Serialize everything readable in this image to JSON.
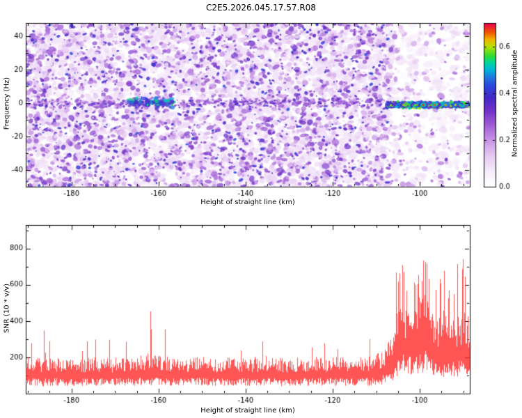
{
  "title": "C2E5.2026.045.17.57.R08",
  "chart_data": [
    {
      "type": "heatmap",
      "title": "",
      "xlabel": "Height of straight line (km)",
      "ylabel": "Frequency (Hz)",
      "xlim": [
        -190.5,
        -88.5
      ],
      "ylim": [
        -50,
        48
      ],
      "xticks": [
        -180,
        -160,
        -140,
        -120,
        -100
      ],
      "x_minor_step": 5,
      "yticks": [
        40,
        20,
        0,
        -20,
        -40
      ],
      "y_minor_step": 10,
      "colorbar": {
        "label": "Normalized spectral amplitude",
        "ticks": [
          0,
          0.2,
          0.4,
          0.6
        ],
        "range": [
          0,
          0.7
        ]
      },
      "colormap_stops": [
        [
          0.0,
          "#ffffff"
        ],
        [
          0.06,
          "#f7eefb"
        ],
        [
          0.13,
          "#e6c9f2"
        ],
        [
          0.2,
          "#c794e6"
        ],
        [
          0.27,
          "#9b57d3"
        ],
        [
          0.33,
          "#6c2fc7"
        ],
        [
          0.38,
          "#4428c8"
        ],
        [
          0.43,
          "#2e44de"
        ],
        [
          0.47,
          "#1f7ae0"
        ],
        [
          0.5,
          "#00b4d8"
        ],
        [
          0.53,
          "#00d4a0"
        ],
        [
          0.56,
          "#30dc30"
        ],
        [
          0.6,
          "#b8e000"
        ],
        [
          0.63,
          "#f0b400"
        ],
        [
          0.66,
          "#f05800"
        ],
        [
          0.7,
          "#e8004c"
        ]
      ],
      "noise": {
        "seed": 1337,
        "sparse_from_km": -106.5,
        "sparse_keep": [
          0.45,
          0.38,
          0.15
        ],
        "passes": [
          {
            "count": 3000,
            "r": [
              2.5,
              6.0
            ],
            "amp": [
              0.04,
              0.14
            ],
            "pow": 1.0,
            "alpha": 0.5
          },
          {
            "count": 3800,
            "r": [
              1.2,
              3.8
            ],
            "amp": [
              0.07,
              0.34
            ],
            "pow": 1.7,
            "alpha": 0.75
          },
          {
            "count": 1000,
            "r": [
              0.8,
              2.4
            ],
            "amp": [
              0.24,
              0.44
            ],
            "pow": 1.0,
            "alpha": 0.85
          }
        ]
      },
      "features": [
        {
          "kind": "streak",
          "km": [
            -190.5,
            -108
          ],
          "freq": 0,
          "spread": 3.0,
          "count": 450,
          "amp": [
            0.16,
            0.38
          ]
        },
        {
          "kind": "cluster",
          "km": [
            -167,
            -156
          ],
          "freq": 0.5,
          "spread": 3.2,
          "count": 90,
          "amp": [
            0.28,
            0.56
          ]
        },
        {
          "kind": "band",
          "km": [
            -107.5,
            -88.7
          ],
          "freq": -1,
          "spread": 2.1,
          "count": 800,
          "amp": [
            0.3,
            0.6
          ]
        },
        {
          "kind": "hotspots",
          "freq": -1,
          "points": [
            {
              "km": -162.5,
              "amp": 0.55
            },
            {
              "km": -99.2,
              "amp": 0.68
            },
            {
              "km": -96.6,
              "amp": 0.66
            },
            {
              "km": -94.1,
              "amp": 0.64
            },
            {
              "km": -91.8,
              "amp": 0.6
            }
          ]
        }
      ]
    },
    {
      "type": "line",
      "title": "",
      "xlabel": "Height of straight line (km)",
      "ylabel": "SNR (10 * v/v)",
      "series_color": "#ff2a2a",
      "xlim": [
        -190.5,
        -88.5
      ],
      "ylim": [
        0,
        930
      ],
      "xticks": [
        -180,
        -160,
        -140,
        -120,
        -100
      ],
      "x_minor_step": 5,
      "yticks": [
        200,
        400,
        600,
        800
      ],
      "y_minor_step": 100,
      "seed": 4242,
      "envelope": [
        [
          -190.5,
          150,
          380
        ],
        [
          -187,
          145,
          430
        ],
        [
          -183,
          150,
          300
        ],
        [
          -179,
          145,
          320
        ],
        [
          -175,
          150,
          300
        ],
        [
          -171,
          145,
          300
        ],
        [
          -167,
          150,
          340
        ],
        [
          -163,
          160,
          470
        ],
        [
          -159,
          155,
          440
        ],
        [
          -155,
          145,
          310
        ],
        [
          -151,
          150,
          290
        ],
        [
          -147,
          145,
          290
        ],
        [
          -143,
          150,
          310
        ],
        [
          -139,
          145,
          290
        ],
        [
          -135,
          150,
          330
        ],
        [
          -131,
          145,
          310
        ],
        [
          -127,
          150,
          370
        ],
        [
          -123,
          150,
          340
        ],
        [
          -119,
          150,
          390
        ],
        [
          -115,
          145,
          320
        ],
        [
          -111,
          155,
          320
        ],
        [
          -108,
          180,
          420
        ],
        [
          -106,
          260,
          560
        ],
        [
          -104.5,
          380,
          900
        ],
        [
          -103,
          380,
          700
        ],
        [
          -101.5,
          350,
          640
        ],
        [
          -100,
          400,
          760
        ],
        [
          -98.5,
          420,
          870
        ],
        [
          -97,
          330,
          700
        ],
        [
          -95.5,
          280,
          620
        ],
        [
          -94,
          320,
          760
        ],
        [
          -92.5,
          300,
          680
        ],
        [
          -91,
          320,
          790
        ],
        [
          -89.5,
          300,
          720
        ],
        [
          -88.5,
          280,
          620
        ]
      ]
    }
  ]
}
